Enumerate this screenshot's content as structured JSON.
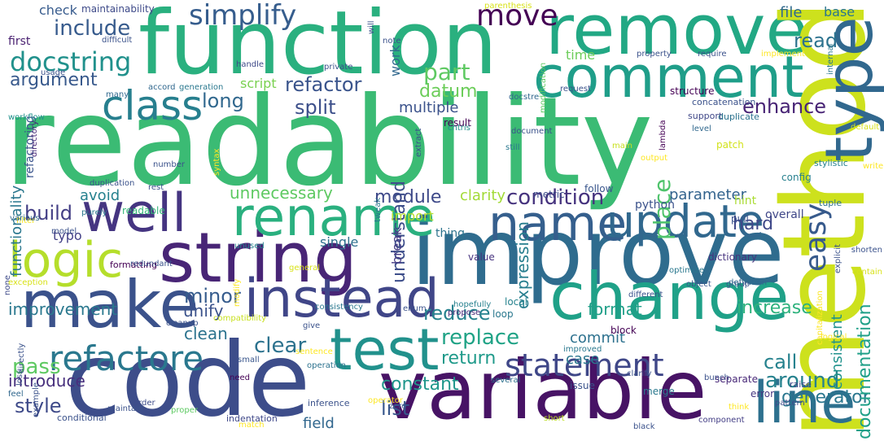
{
  "words": [
    {
      "text": "readability",
      "color": "#3bbb74"
    },
    {
      "text": "function",
      "color": "#2ab07f"
    },
    {
      "text": "improve",
      "color": "#2f6c8e"
    },
    {
      "text": "code",
      "color": "#3d4d8a"
    },
    {
      "text": "variable",
      "color": "#471365"
    },
    {
      "text": "remove",
      "color": "#22a884"
    },
    {
      "text": "comment",
      "color": "#1f9e89"
    },
    {
      "text": "method",
      "color": "#cde11d"
    },
    {
      "text": "string",
      "color": "#482576"
    },
    {
      "text": "make",
      "color": "#3b528b"
    },
    {
      "text": "change",
      "color": "#1fa188"
    },
    {
      "text": "test",
      "color": "#21918c"
    },
    {
      "text": "instead",
      "color": "#404688"
    },
    {
      "text": "well",
      "color": "#453581"
    },
    {
      "text": "rename",
      "color": "#2ab07f"
    },
    {
      "text": "name",
      "color": "#355f8d"
    },
    {
      "text": "update",
      "color": "#31688e"
    },
    {
      "text": "logic",
      "color": "#b5de2b"
    },
    {
      "text": "class",
      "color": "#277f8e"
    },
    {
      "text": "line",
      "color": "#2d708e"
    },
    {
      "text": "type",
      "color": "#31688e"
    },
    {
      "text": "refactore",
      "color": "#2a788e"
    },
    {
      "text": "statement",
      "color": "#3f4788"
    },
    {
      "text": "simplify",
      "color": "#365d8d"
    },
    {
      "text": "move",
      "color": "#440154"
    },
    {
      "text": "docstring",
      "color": "#21918c"
    },
    {
      "text": "include",
      "color": "#375b8d"
    },
    {
      "text": "condition",
      "color": "#46337e"
    },
    {
      "text": "replace",
      "color": "#20a386"
    },
    {
      "text": "module",
      "color": "#3e4989"
    },
    {
      "text": "unnecessary",
      "color": "#5ec962"
    },
    {
      "text": "datum",
      "color": "#6ccd5a"
    },
    {
      "text": "refactor",
      "color": "#3a548c"
    },
    {
      "text": "part",
      "color": "#5ec962"
    },
    {
      "text": "easy",
      "color": "#375a8c"
    },
    {
      "text": "around",
      "color": "#26828e"
    },
    {
      "text": "constant",
      "color": "#1f968b"
    },
    {
      "text": "return",
      "color": "#1f9a8a"
    },
    {
      "text": "clear",
      "color": "#2c728e"
    },
    {
      "text": "reduce",
      "color": "#26828e"
    },
    {
      "text": "long",
      "color": "#31688e"
    },
    {
      "text": "split",
      "color": "#3c4f8a"
    },
    {
      "text": "enhance",
      "color": "#482475"
    },
    {
      "text": "read",
      "color": "#2c728e"
    },
    {
      "text": "argument",
      "color": "#38598c"
    },
    {
      "text": "pass",
      "color": "#5ec962"
    },
    {
      "text": "style",
      "color": "#3e4a89"
    },
    {
      "text": "list",
      "color": "#38588c"
    },
    {
      "text": "minor",
      "color": "#365c8d"
    },
    {
      "text": "build",
      "color": "#433e85"
    },
    {
      "text": "hard",
      "color": "#3f4889"
    },
    {
      "text": "call",
      "color": "#26828e"
    },
    {
      "text": "generator",
      "color": "#2a768e"
    },
    {
      "text": "field",
      "color": "#31678e"
    },
    {
      "text": "documentation",
      "color": "#1fa088"
    },
    {
      "text": "consistent",
      "color": "#20928c"
    },
    {
      "text": "increase",
      "color": "#2db27d"
    },
    {
      "text": "format",
      "color": "#1f9f88"
    },
    {
      "text": "expression",
      "color": "#277e8e"
    },
    {
      "text": "understand",
      "color": "#3d4e8a"
    },
    {
      "text": "unify",
      "color": "#3b528b"
    },
    {
      "text": "clean",
      "color": "#2c738e"
    },
    {
      "text": "improvement",
      "color": "#2a788e"
    },
    {
      "text": "introduce",
      "color": "#472f7d"
    },
    {
      "text": "functionality",
      "color": "#2a778e"
    },
    {
      "text": "avoid",
      "color": "#26818e"
    },
    {
      "text": "check",
      "color": "#375b8d"
    },
    {
      "text": "file",
      "color": "#306a8e"
    },
    {
      "text": "base",
      "color": "#2a768e"
    },
    {
      "text": "parameter",
      "color": "#33638d"
    },
    {
      "text": "clarity",
      "color": "#a2da37"
    },
    {
      "text": "place",
      "color": "#4ec36b"
    },
    {
      "text": "multiple",
      "color": "#3b528b"
    },
    {
      "text": "case",
      "color": "#2a768e"
    },
    {
      "text": "commit",
      "color": "#2d718e"
    },
    {
      "text": "time",
      "color": "#6ccd5a"
    },
    {
      "text": "script",
      "color": "#7ad151"
    },
    {
      "text": "import",
      "color": "#b5de2b"
    },
    {
      "text": "typo",
      "color": "#424086"
    },
    {
      "text": "single",
      "color": "#2d708e"
    },
    {
      "text": "work",
      "color": "#31688e"
    },
    {
      "text": "first",
      "color": "#481f70"
    },
    {
      "text": "maintainability",
      "color": "#3e4a89"
    },
    {
      "text": "break",
      "color": "#443a83"
    },
    {
      "text": "python",
      "color": "#3b528b"
    },
    {
      "text": "hint",
      "color": "#aadc32"
    },
    {
      "text": "overall",
      "color": "#3f4788"
    },
    {
      "text": "config",
      "color": "#27808e"
    },
    {
      "text": "pull",
      "color": "#3b528b"
    },
    {
      "text": "refactoring",
      "color": "#3a548c"
    },
    {
      "text": "thing",
      "color": "#2c738e"
    },
    {
      "text": "dictionary",
      "color": "#46337e"
    },
    {
      "text": "structure",
      "color": "#440154"
    },
    {
      "text": "concatenation",
      "color": "#3b528b"
    },
    {
      "text": "support",
      "color": "#3f4788"
    },
    {
      "text": "duplicate",
      "color": "#2c728e"
    },
    {
      "text": "readable",
      "color": "#35b779"
    },
    {
      "text": "follow",
      "color": "#39558c"
    },
    {
      "text": "metric",
      "color": "#3e4c8a"
    },
    {
      "text": "result",
      "color": "#440154"
    },
    {
      "text": "stylistic",
      "color": "#26828e"
    },
    {
      "text": "tuple",
      "color": "#2d708e"
    },
    {
      "text": "patch",
      "color": "#d2e21b"
    },
    {
      "text": "value",
      "color": "#46327e"
    },
    {
      "text": "loop",
      "color": "#2a788e"
    },
    {
      "text": "block",
      "color": "#440154"
    },
    {
      "text": "local",
      "color": "#26828e"
    },
    {
      "text": "issue",
      "color": "#3b528b"
    },
    {
      "text": "separate",
      "color": "#482878"
    },
    {
      "text": "error",
      "color": "#453781"
    },
    {
      "text": "raise",
      "color": "#414487"
    },
    {
      "text": "merge",
      "color": "#2a788e"
    },
    {
      "text": "several",
      "color": "#2d708e"
    },
    {
      "text": "proper",
      "color": "#5ec962"
    },
    {
      "text": "conditional",
      "color": "#3b528b"
    },
    {
      "text": "indentation",
      "color": "#3f4889"
    },
    {
      "text": "operator",
      "color": "#fde725"
    },
    {
      "text": "inference",
      "color": "#3b528b"
    },
    {
      "text": "short",
      "color": "#bddf26"
    },
    {
      "text": "component",
      "color": "#433e85"
    },
    {
      "text": "think",
      "color": "#fde725"
    },
    {
      "text": "order",
      "color": "#3e4c8a"
    },
    {
      "text": "pattern",
      "color": "#3e4a89"
    },
    {
      "text": "operation",
      "color": "#2c728e"
    },
    {
      "text": "need",
      "color": "#440154"
    },
    {
      "text": "small",
      "color": "#39568c"
    },
    {
      "text": "give",
      "color": "#3b528b"
    },
    {
      "text": "cleanup",
      "color": "#3b528b"
    },
    {
      "text": "formatting",
      "color": "#440154"
    },
    {
      "text": "compatibility",
      "color": "#c8e020"
    },
    {
      "text": "consistency",
      "color": "#2a778e"
    },
    {
      "text": "hopefully",
      "color": "#27808e"
    },
    {
      "text": "optimize",
      "color": "#2a788e"
    },
    {
      "text": "object",
      "color": "#39568c"
    },
    {
      "text": "group",
      "color": "#3b528b"
    },
    {
      "text": "propose",
      "color": "#482878"
    },
    {
      "text": "unused",
      "color": "#26828e"
    },
    {
      "text": "different",
      "color": "#3b528b"
    },
    {
      "text": "redundant",
      "color": "#3b528b"
    },
    {
      "text": "model",
      "color": "#3b528b"
    },
    {
      "text": "filter",
      "color": "#fde725"
    },
    {
      "text": "none",
      "color": "#3e4a89"
    },
    {
      "text": "exception",
      "color": "#d8e219"
    },
    {
      "text": "example",
      "color": "#3b528b"
    },
    {
      "text": "feel",
      "color": "#31688e"
    },
    {
      "text": "various",
      "color": "#31688e"
    },
    {
      "text": "directly",
      "color": "#3b528b"
    },
    {
      "text": "purely",
      "color": "#2a788e"
    },
    {
      "text": "number",
      "color": "#3b528b"
    },
    {
      "text": "duplication",
      "color": "#3b528b"
    },
    {
      "text": "workflow",
      "color": "#21918c"
    },
    {
      "text": "many",
      "color": "#31688e"
    },
    {
      "text": "generation",
      "color": "#2a788e"
    },
    {
      "text": "accord",
      "color": "#31688e"
    },
    {
      "text": "handle",
      "color": "#3e4a89"
    },
    {
      "text": "usage",
      "color": "#3b528b"
    },
    {
      "text": "difficult",
      "color": "#3b528b"
    },
    {
      "text": "directory",
      "color": "#482878"
    },
    {
      "text": "private",
      "color": "#3b528b"
    },
    {
      "text": "note",
      "color": "#3b528b"
    },
    {
      "text": "parenthesis",
      "color": "#d8e219"
    },
    {
      "text": "docstre",
      "color": "#31688e"
    },
    {
      "text": "request",
      "color": "#3b528b"
    },
    {
      "text": "document",
      "color": "#3b528b"
    },
    {
      "text": "still",
      "color": "#2a788e"
    },
    {
      "text": "chtris",
      "color": "#21918c"
    },
    {
      "text": "extract",
      "color": "#3b528b"
    },
    {
      "text": "modification",
      "color": "#5ec962"
    },
    {
      "text": "property",
      "color": "#3b528b"
    },
    {
      "text": "require",
      "color": "#3b528b"
    },
    {
      "text": "implement",
      "color": "#fde725"
    },
    {
      "text": "internal",
      "color": "#2a788e"
    },
    {
      "text": "level",
      "color": "#31688e"
    },
    {
      "text": "lambda",
      "color": "#440154"
    },
    {
      "text": "write",
      "color": "#fde725"
    },
    {
      "text": "default",
      "color": "#d8e219"
    },
    {
      "text": "main",
      "color": "#c8e020"
    },
    {
      "text": "output",
      "color": "#fde725"
    },
    {
      "text": "explicit",
      "color": "#3b528b"
    },
    {
      "text": "shorten",
      "color": "#3b528b"
    },
    {
      "text": "contain",
      "color": "#d8e219"
    },
    {
      "text": "definition",
      "color": "#31688e"
    },
    {
      "text": "capitalization",
      "color": "#fde725"
    },
    {
      "text": "logical",
      "color": "#fde725"
    },
    {
      "text": "bunch",
      "color": "#3b528b"
    },
    {
      "text": "clarify",
      "color": "#3b528b"
    },
    {
      "text": "improved",
      "color": "#2a788e"
    },
    {
      "text": "enum",
      "color": "#3b528b"
    },
    {
      "text": "modify",
      "color": "#fde725"
    },
    {
      "text": "sentence",
      "color": "#fde725"
    },
    {
      "text": "general",
      "color": "#d8e219"
    },
    {
      "text": "zero",
      "color": "#3b528b"
    },
    {
      "text": "black",
      "color": "#3b528b"
    },
    {
      "text": "match",
      "color": "#fde725"
    },
    {
      "text": "maintain",
      "color": "#3b528b"
    },
    {
      "text": "rest",
      "color": "#3b528b"
    },
    {
      "text": "tweak",
      "color": "#2a788e"
    },
    {
      "text": "syntax",
      "color": "#fde725"
    },
    {
      "text": "loss",
      "color": "#3b528b"
    },
    {
      "text": "will",
      "color": "#3b528b"
    }
  ]
}
